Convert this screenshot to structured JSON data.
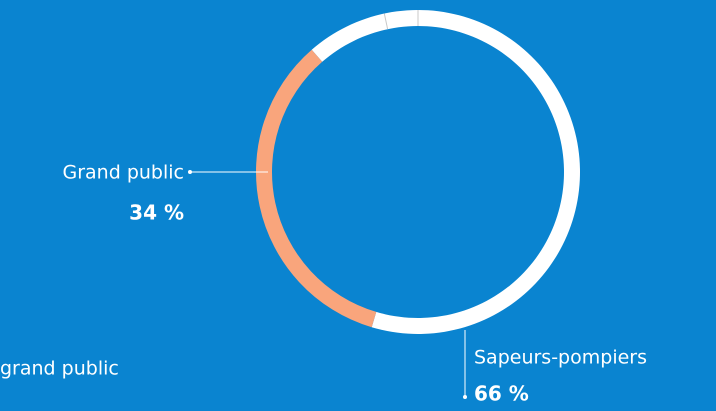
{
  "chart_data": {
    "type": "donut",
    "categories": [
      "Sapeurs-pompiers",
      "Grand public"
    ],
    "values": [
      66,
      34
    ],
    "value_labels": [
      "66 %",
      "34 %"
    ],
    "colors": [
      "#ffffff",
      "#f9a57c"
    ],
    "caption": "grand public"
  }
}
